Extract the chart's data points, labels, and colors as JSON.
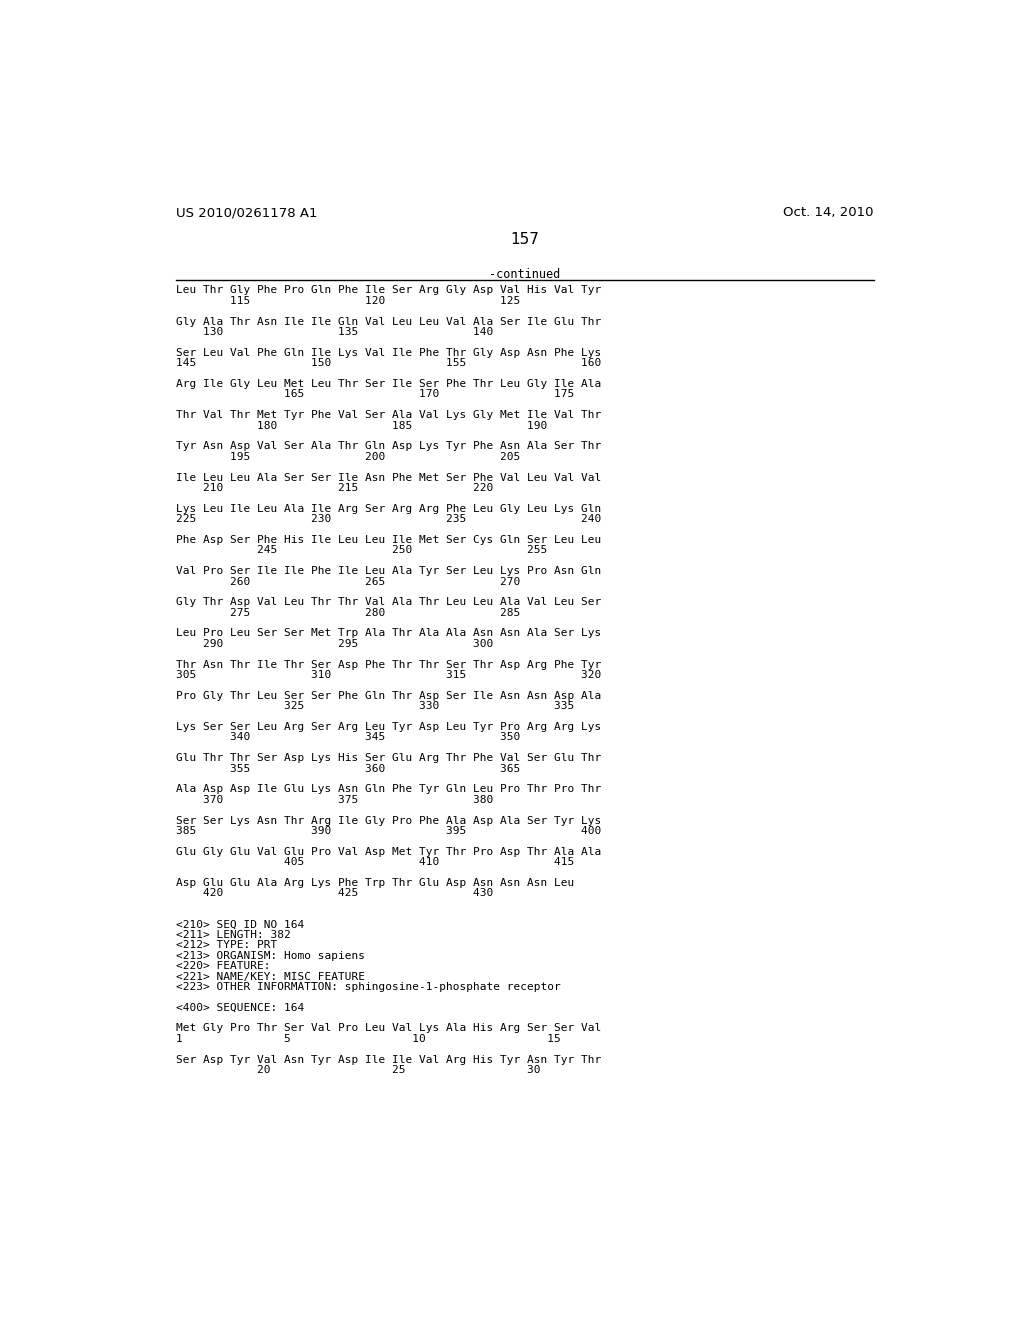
{
  "header_left": "US 2010/0261178 A1",
  "header_right": "Oct. 14, 2010",
  "page_number": "157",
  "continued_label": "-continued",
  "background_color": "#ffffff",
  "text_color": "#000000",
  "content_lines": [
    "Leu Thr Gly Phe Pro Gln Phe Ile Ser Arg Gly Asp Val His Val Tyr",
    "        115                 120                 125",
    "",
    "Gly Ala Thr Asn Ile Ile Gln Val Leu Leu Val Ala Ser Ile Glu Thr",
    "    130                 135                 140",
    "",
    "Ser Leu Val Phe Gln Ile Lys Val Ile Phe Thr Gly Asp Asn Phe Lys",
    "145                 150                 155                 160",
    "",
    "Arg Ile Gly Leu Met Leu Thr Ser Ile Ser Phe Thr Leu Gly Ile Ala",
    "                165                 170                 175",
    "",
    "Thr Val Thr Met Tyr Phe Val Ser Ala Val Lys Gly Met Ile Val Thr",
    "            180                 185                 190",
    "",
    "Tyr Asn Asp Val Ser Ala Thr Gln Asp Lys Tyr Phe Asn Ala Ser Thr",
    "        195                 200                 205",
    "",
    "Ile Leu Leu Ala Ser Ser Ile Asn Phe Met Ser Phe Val Leu Val Val",
    "    210                 215                 220",
    "",
    "Lys Leu Ile Leu Ala Ile Arg Ser Arg Arg Phe Leu Gly Leu Lys Gln",
    "225                 230                 235                 240",
    "",
    "Phe Asp Ser Phe His Ile Leu Leu Ile Met Ser Cys Gln Ser Leu Leu",
    "            245                 250                 255",
    "",
    "Val Pro Ser Ile Ile Phe Ile Leu Ala Tyr Ser Leu Lys Pro Asn Gln",
    "        260                 265                 270",
    "",
    "Gly Thr Asp Val Leu Thr Thr Val Ala Thr Leu Leu Ala Val Leu Ser",
    "        275                 280                 285",
    "",
    "Leu Pro Leu Ser Ser Met Trp Ala Thr Ala Ala Asn Asn Ala Ser Lys",
    "    290                 295                 300",
    "",
    "Thr Asn Thr Ile Thr Ser Asp Phe Thr Thr Ser Thr Asp Arg Phe Tyr",
    "305                 310                 315                 320",
    "",
    "Pro Gly Thr Leu Ser Ser Phe Gln Thr Asp Ser Ile Asn Asn Asp Ala",
    "                325                 330                 335",
    "",
    "Lys Ser Ser Leu Arg Ser Arg Leu Tyr Asp Leu Tyr Pro Arg Arg Lys",
    "        340                 345                 350",
    "",
    "Glu Thr Thr Ser Asp Lys His Ser Glu Arg Thr Phe Val Ser Glu Thr",
    "        355                 360                 365",
    "",
    "Ala Asp Asp Ile Glu Lys Asn Gln Phe Tyr Gln Leu Pro Thr Pro Thr",
    "    370                 375                 380",
    "",
    "Ser Ser Lys Asn Thr Arg Ile Gly Pro Phe Ala Asp Ala Ser Tyr Lys",
    "385                 390                 395                 400",
    "",
    "Glu Gly Glu Val Glu Pro Val Asp Met Tyr Thr Pro Asp Thr Ala Ala",
    "                405                 410                 415",
    "",
    "Asp Glu Glu Ala Arg Lys Phe Trp Thr Glu Asp Asn Asn Asn Leu",
    "    420                 425                 430",
    "",
    "",
    "<210> SEQ ID NO 164",
    "<211> LENGTH: 382",
    "<212> TYPE: PRT",
    "<213> ORGANISM: Homo sapiens",
    "<220> FEATURE:",
    "<221> NAME/KEY: MISC_FEATURE",
    "<223> OTHER INFORMATION: sphingosine-1-phosphate receptor",
    "",
    "<400> SEQUENCE: 164",
    "",
    "Met Gly Pro Thr Ser Val Pro Leu Val Lys Ala His Arg Ser Ser Val",
    "1               5                  10                  15",
    "",
    "Ser Asp Tyr Val Asn Tyr Asp Ile Ile Val Arg His Tyr Asn Tyr Thr",
    "            20                  25                  30"
  ]
}
